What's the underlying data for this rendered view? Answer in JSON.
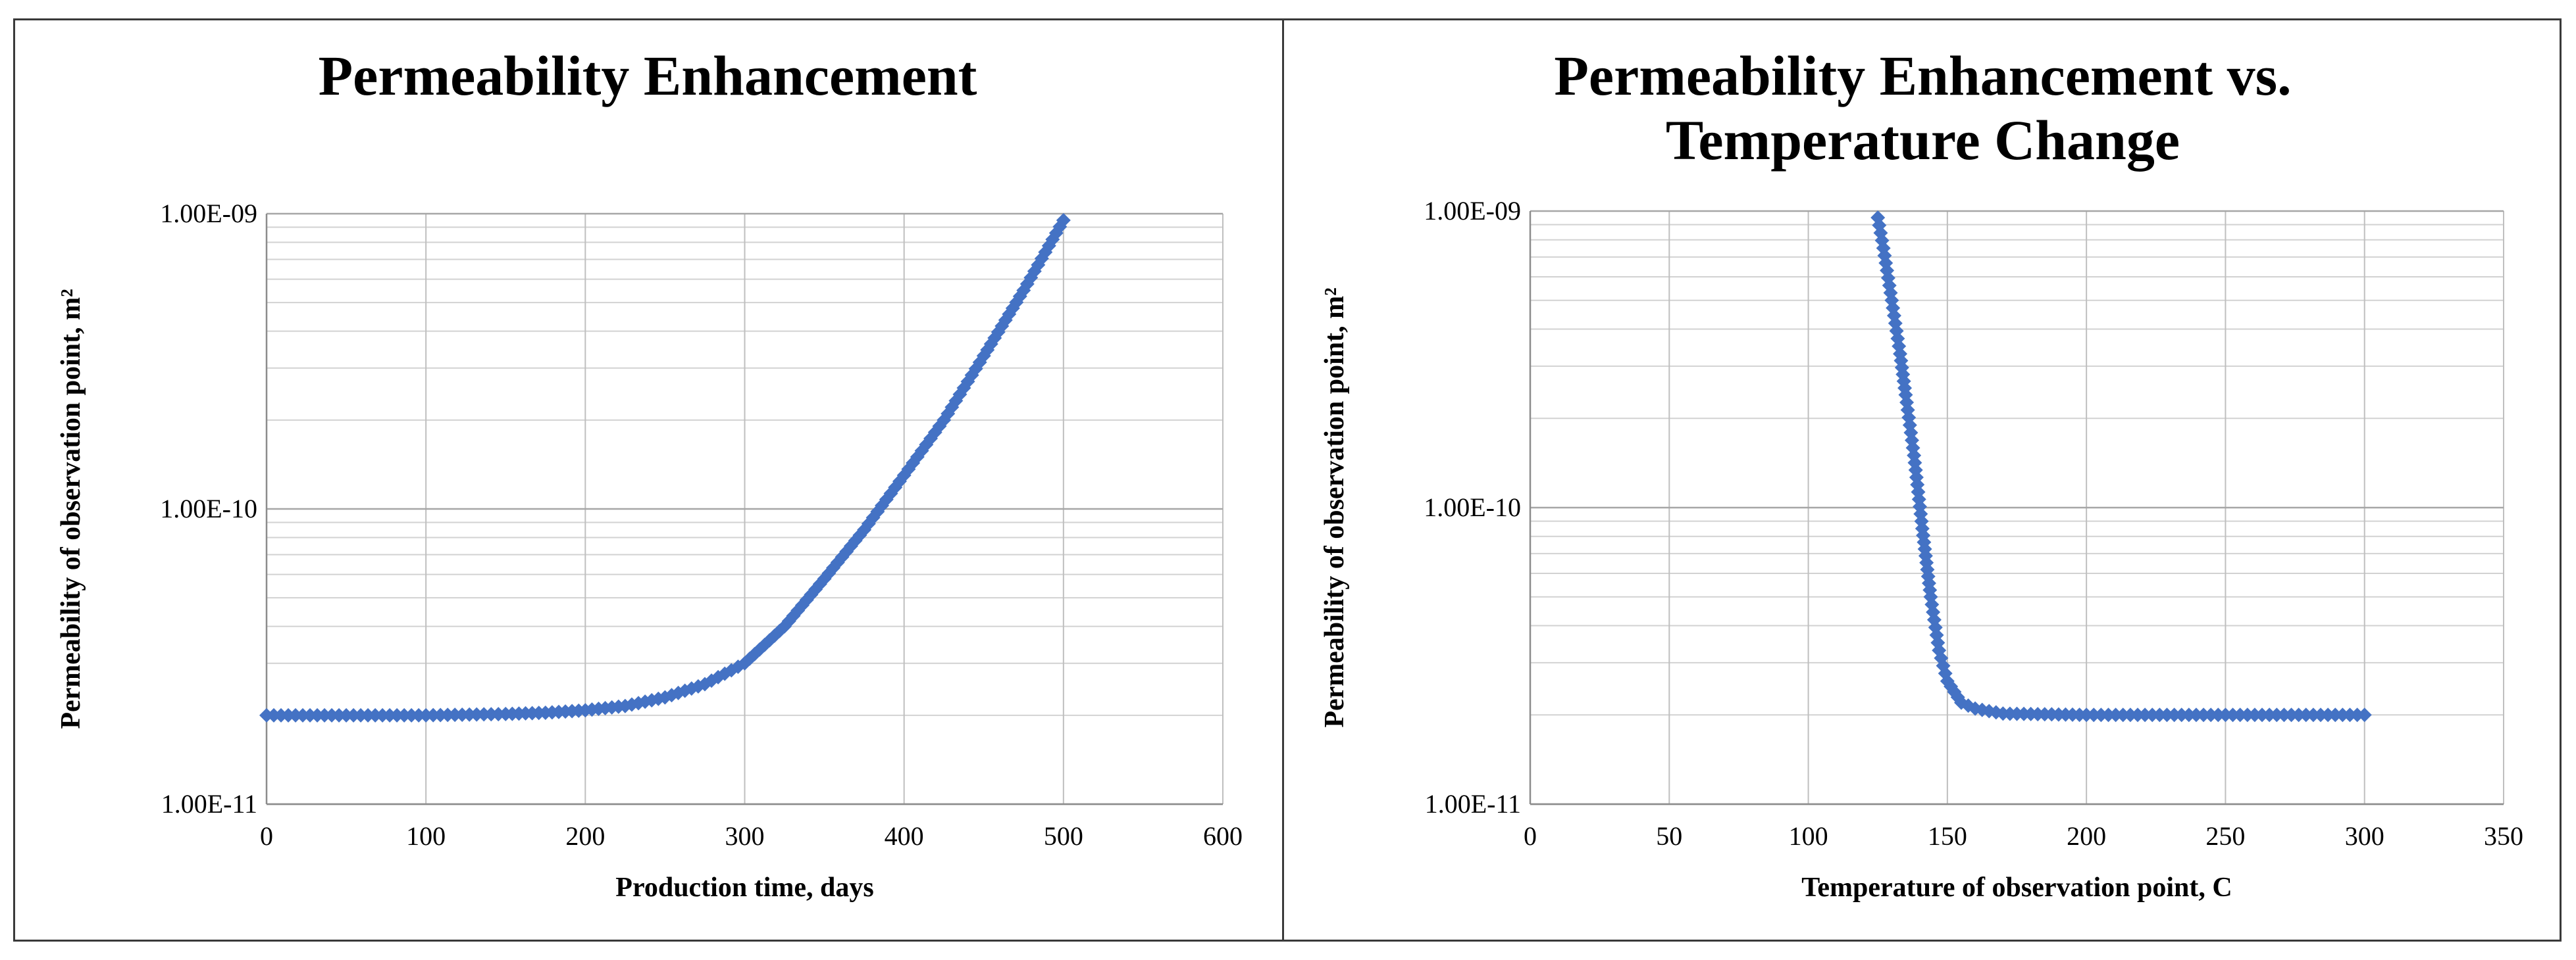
{
  "chart_data": [
    {
      "type": "scatter",
      "title": "Permeability Enhancement",
      "xlabel": "Production time, days",
      "ylabel": "Permeability of observation point, m²",
      "xlim": [
        0,
        600
      ],
      "ylim": [
        1e-11,
        1e-09
      ],
      "y_scale": "log",
      "x_ticks": [
        "0",
        "100",
        "200",
        "300",
        "400",
        "500",
        "600"
      ],
      "y_ticks": [
        "1.00E-11",
        "1.00E-10",
        "1.00E-09"
      ],
      "grid": true,
      "legend": "none",
      "marker": "diamond",
      "color": "#4472C4",
      "series": [
        {
          "x": [
            0,
            50,
            100,
            150,
            175,
            200,
            225,
            250,
            275,
            300,
            325,
            350,
            375,
            400,
            425,
            450,
            475,
            500
          ],
          "y": [
            2e-11,
            2e-11,
            2e-11,
            2.02e-11,
            2.04e-11,
            2.08e-11,
            2.15e-11,
            2.3e-11,
            2.55e-11,
            3e-11,
            4e-11,
            5.8e-11,
            8.5e-11,
            1.3e-10,
            2e-10,
            3.3e-10,
            5.5e-10,
            9.5e-10
          ]
        }
      ]
    },
    {
      "type": "scatter",
      "title": "Permeability Enhancement vs.\nTemperature Change",
      "xlabel": "Temperature of observation point, C",
      "ylabel": "Permeability of observation point, m²",
      "xlim": [
        0,
        350
      ],
      "ylim": [
        1e-11,
        1e-09
      ],
      "y_scale": "log",
      "x_ticks": [
        "0",
        "50",
        "100",
        "150",
        "200",
        "250",
        "300",
        "350"
      ],
      "y_ticks": [
        "1.00E-11",
        "1.00E-10",
        "1.00E-09"
      ],
      "grid": true,
      "legend": "none",
      "marker": "diamond",
      "color": "#4472C4",
      "series": [
        {
          "x": [
            125,
            127,
            130,
            133,
            135,
            138,
            141,
            144,
            147,
            150,
            155,
            160,
            170,
            200,
            250,
            300
          ],
          "y": [
            9.5e-10,
            7.5e-10,
            5e-10,
            3.3e-10,
            2.4e-10,
            1.5e-10,
            8.5e-11,
            5e-11,
            3.3e-11,
            2.6e-11,
            2.2e-11,
            2.1e-11,
            2.02e-11,
            2e-11,
            2e-11,
            2e-11
          ]
        }
      ]
    }
  ]
}
